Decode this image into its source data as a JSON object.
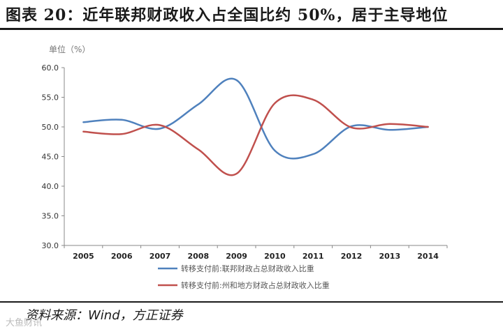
{
  "header": {
    "title": "图表 20：近年联邦财政收入占全国比约 50%，居于主导地位"
  },
  "footer": {
    "source": "资料来源：Wind，方正证券",
    "watermark": "大鱼财讯"
  },
  "chart_data": {
    "type": "line",
    "title": "",
    "xlabel": "",
    "ylabel": "单位（%）",
    "x": [
      "2005",
      "2006",
      "2007",
      "2008",
      "2009",
      "2010",
      "2011",
      "2012",
      "2013",
      "2014"
    ],
    "ylim": [
      30.0,
      60.0
    ],
    "yticks": [
      "30.0",
      "35.0",
      "40.0",
      "45.0",
      "50.0",
      "55.0",
      "60.0"
    ],
    "grid": false,
    "legend_position": "bottom",
    "series": [
      {
        "name": "转移支付前:联邦财政占总财政收入比重",
        "color": "#4f81bd",
        "values": [
          50.8,
          51.2,
          49.7,
          53.8,
          57.9,
          46.0,
          45.4,
          50.1,
          49.5,
          50.0
        ]
      },
      {
        "name": "转移支付前:州和地方财政占总财政收入比重",
        "color": "#c0504d",
        "values": [
          49.2,
          48.8,
          50.3,
          46.2,
          42.1,
          54.0,
          54.6,
          49.9,
          50.5,
          50.0
        ]
      }
    ]
  }
}
